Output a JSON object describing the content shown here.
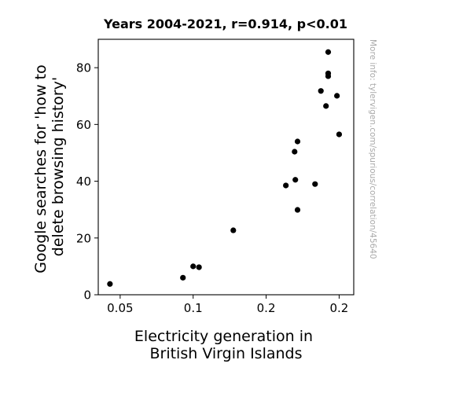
{
  "chart_data": {
    "type": "scatter",
    "title": "Years 2004-2021, r=0.914, p<0.01",
    "xlabel": [
      "Electricity generation in",
      "British Virgin Islands"
    ],
    "ylabel": [
      "Google searches for 'how to",
      "delete browsing history'"
    ],
    "watermark": "More info: tylervigen.com/spurious/correlation/45640",
    "xlim": [
      0.035,
      0.21
    ],
    "ylim": [
      0,
      90
    ],
    "x_ticks": [
      {
        "value": 0.05,
        "label": "0.05"
      },
      {
        "value": 0.1,
        "label": "0.1"
      },
      {
        "value": 0.15,
        "label": "0.2"
      },
      {
        "value": 0.2,
        "label": "0.2"
      }
    ],
    "y_ticks": [
      {
        "value": 0,
        "label": "0"
      },
      {
        "value": 20,
        "label": "20"
      },
      {
        "value": 40,
        "label": "40"
      },
      {
        "value": 60,
        "label": "60"
      },
      {
        "value": 80,
        "label": "80"
      }
    ],
    "grid": false,
    "marker_color": "#000000",
    "points": [
      {
        "x": 0.043,
        "y": 3.8
      },
      {
        "x": 0.093,
        "y": 6.0
      },
      {
        "x": 0.1,
        "y": 10.0
      },
      {
        "x": 0.104,
        "y": 9.7
      },
      {
        "x": 0.1275,
        "y": 22.7
      },
      {
        "x": 0.1635,
        "y": 38.5
      },
      {
        "x": 0.1695,
        "y": 50.4
      },
      {
        "x": 0.17,
        "y": 40.5
      },
      {
        "x": 0.1715,
        "y": 29.9
      },
      {
        "x": 0.1715,
        "y": 54.0
      },
      {
        "x": 0.1835,
        "y": 39.0
      },
      {
        "x": 0.1875,
        "y": 71.8
      },
      {
        "x": 0.191,
        "y": 66.5
      },
      {
        "x": 0.1925,
        "y": 85.5
      },
      {
        "x": 0.1925,
        "y": 78.0
      },
      {
        "x": 0.1925,
        "y": 77.0
      },
      {
        "x": 0.1985,
        "y": 70.1
      },
      {
        "x": 0.2,
        "y": 56.5
      }
    ]
  }
}
